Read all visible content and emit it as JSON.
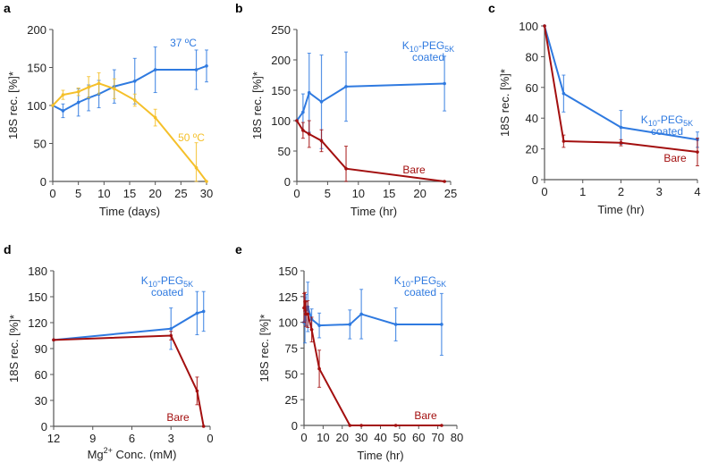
{
  "colors": {
    "blue": "#2f7ae0",
    "yellow": "#f5c02a",
    "red": "#a30f0f",
    "axis": "#555555"
  },
  "chart_data": [
    {
      "panel": "a",
      "type": "line",
      "xlabel": "Time (days)",
      "ylabel": "18S rec. [%]*",
      "xlim": [
        0,
        30
      ],
      "ylim": [
        0,
        200
      ],
      "xticks": [
        0,
        5,
        10,
        15,
        20,
        25,
        30
      ],
      "yticks": [
        0,
        50,
        100,
        150,
        200
      ],
      "series": [
        {
          "name": "37 ºC",
          "color": "#2f7ae0",
          "x": [
            0,
            2,
            5,
            7,
            9,
            12,
            16,
            20,
            28,
            30
          ],
          "y": [
            100,
            93,
            104,
            110,
            115,
            125,
            132,
            147,
            147,
            152
          ],
          "err": [
            0,
            9,
            18,
            17,
            18,
            22,
            30,
            30,
            26,
            21
          ]
        },
        {
          "name": "50 ºC",
          "color": "#f5c02a",
          "x": [
            0,
            2,
            5,
            7,
            9,
            12,
            16,
            20,
            28,
            30
          ],
          "y": [
            100,
            114,
            118,
            124,
            129,
            122,
            107,
            84,
            18,
            0
          ],
          "err": [
            0,
            6,
            5,
            14,
            14,
            13,
            8,
            11,
            33,
            0
          ]
        }
      ]
    },
    {
      "panel": "b",
      "type": "line",
      "xlabel": "Time (hr)",
      "ylabel": "18S rec. [%]*",
      "xlim": [
        0,
        25
      ],
      "ylim": [
        0,
        250
      ],
      "xticks": [
        0,
        5,
        10,
        15,
        20,
        25
      ],
      "yticks": [
        0,
        50,
        100,
        150,
        200,
        250
      ],
      "series": [
        {
          "name": "K10-PEG5K coated",
          "color": "#2f7ae0",
          "x": [
            0,
            1,
            2,
            4,
            8,
            24
          ],
          "y": [
            100,
            114,
            146,
            131,
            156,
            161
          ],
          "err": [
            0,
            30,
            65,
            77,
            57,
            45
          ]
        },
        {
          "name": "Bare",
          "color": "#a30f0f",
          "x": [
            0,
            1,
            2,
            4,
            8,
            24
          ],
          "y": [
            100,
            84,
            78,
            67,
            21,
            0
          ],
          "err": [
            0,
            13,
            22,
            18,
            37,
            0
          ]
        }
      ]
    },
    {
      "panel": "c",
      "type": "line",
      "xlabel": "Time (hr)",
      "ylabel": "18S rec. [%]*",
      "xlim": [
        0,
        4
      ],
      "ylim": [
        0,
        100
      ],
      "xticks": [
        0,
        1,
        2,
        3,
        4
      ],
      "yticks": [
        0,
        20,
        40,
        60,
        80,
        100
      ],
      "series": [
        {
          "name": "K10-PEG5K coated",
          "color": "#2f7ae0",
          "x": [
            0,
            0.5,
            2,
            4
          ],
          "y": [
            100,
            56,
            34,
            26
          ],
          "err": [
            0,
            12,
            11,
            5
          ]
        },
        {
          "name": "Bare",
          "color": "#a30f0f",
          "x": [
            0,
            0.5,
            2,
            4
          ],
          "y": [
            100,
            25,
            24,
            18
          ],
          "err": [
            0,
            4,
            2,
            9
          ]
        }
      ]
    },
    {
      "panel": "d",
      "type": "line",
      "xlabel": "Mg2+ Conc. (mM)",
      "ylabel": "18S rec. [%]*",
      "xlim": [
        12,
        0
      ],
      "ylim": [
        0,
        180
      ],
      "xticks": [
        12,
        9,
        6,
        3,
        0
      ],
      "yticks": [
        0,
        30,
        60,
        90,
        120,
        150,
        180
      ],
      "series": [
        {
          "name": "K10-PEG5K coated",
          "color": "#2f7ae0",
          "x": [
            12,
            3,
            1,
            0.5
          ],
          "y": [
            100,
            113,
            131,
            133
          ],
          "err": [
            0,
            24,
            25,
            23
          ]
        },
        {
          "name": "Bare",
          "color": "#a30f0f",
          "x": [
            12,
            3,
            1,
            0.5
          ],
          "y": [
            100,
            105,
            41,
            0
          ],
          "err": [
            0,
            5,
            16,
            0
          ]
        }
      ]
    },
    {
      "panel": "e",
      "type": "line",
      "xlabel": "Time (hr)",
      "ylabel": "18S rec. [%]*",
      "xlim": [
        0,
        80
      ],
      "ylim": [
        0,
        150
      ],
      "xticks": [
        0,
        10,
        20,
        30,
        40,
        50,
        60,
        70,
        80
      ],
      "yticks": [
        0,
        25,
        50,
        75,
        100,
        125,
        150
      ],
      "series": [
        {
          "name": "K10-PEG5K coated",
          "color": "#2f7ae0",
          "x": [
            0,
            0.5,
            1,
            2,
            4,
            8,
            24,
            30,
            48,
            72
          ],
          "y": [
            100,
            102,
            112,
            115,
            103,
            97,
            98,
            108,
            98,
            98
          ],
          "err": [
            0,
            22,
            15,
            24,
            10,
            12,
            14,
            24,
            16,
            30
          ]
        },
        {
          "name": "Bare",
          "color": "#a30f0f",
          "x": [
            0,
            0.5,
            1,
            2,
            4,
            8,
            24,
            30,
            48,
            72
          ],
          "y": [
            114,
            120,
            108,
            108,
            93,
            55,
            0,
            0,
            0,
            0
          ],
          "err": [
            14,
            9,
            12,
            13,
            12,
            18,
            0,
            0,
            0,
            0
          ]
        }
      ]
    }
  ],
  "labels": {
    "a": {
      "s1": "37 ºC",
      "s2": "50 ºC"
    },
    "coated_main": "K",
    "coated_sub1": "10",
    "coated_mid": "-PEG",
    "coated_sub2": "5K",
    "coated_line2": "coated",
    "bare": "Bare",
    "d_xlabel_pre": "Mg",
    "d_xlabel_sup": "2+",
    "d_xlabel_post": " Conc. (mM)"
  }
}
